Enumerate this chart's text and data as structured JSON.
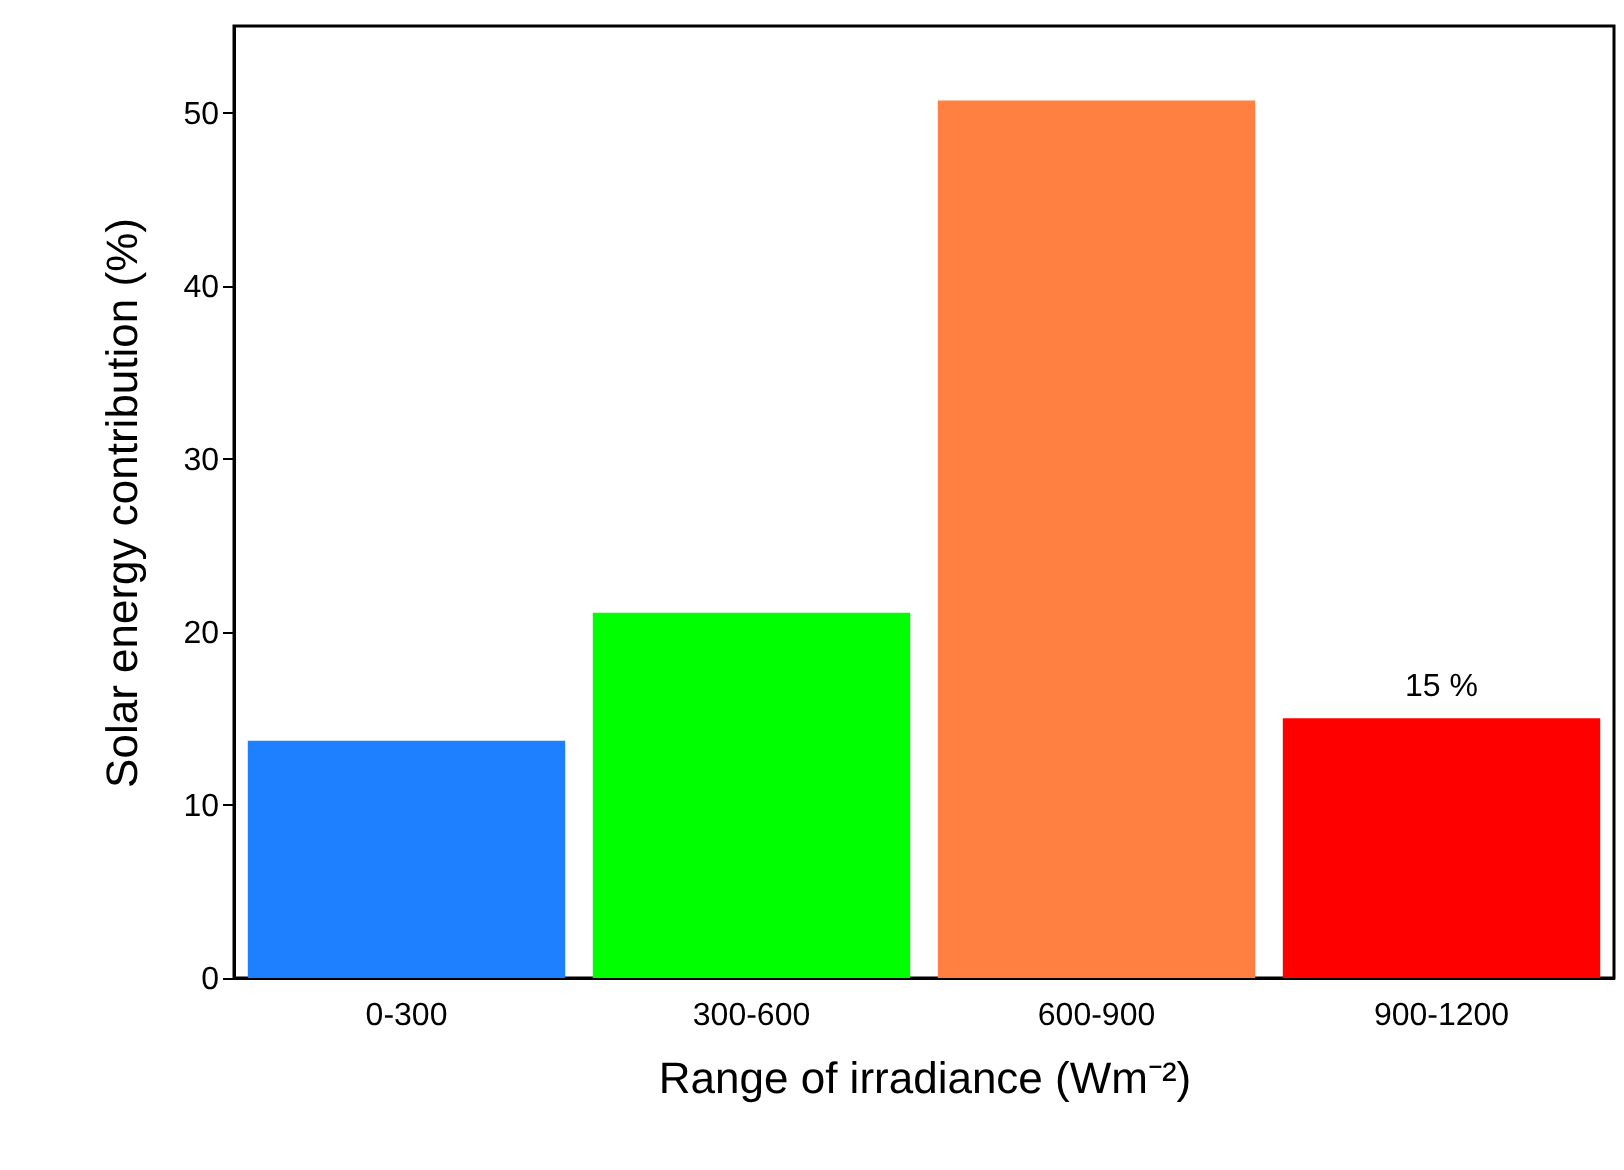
{
  "chart_data": {
    "type": "bar",
    "xlabel": "Range of irradiance (Wm⁻²)",
    "ylabel": "Solar energy contribution (%)",
    "categories": [
      "0-300",
      "300-600",
      "600-900",
      "900-1200"
    ],
    "values": [
      13.7,
      21.1,
      50.7,
      15
    ],
    "colors": [
      "#1e80ff",
      "#00ff00",
      "#ff8040",
      "#ff0000"
    ],
    "value_labels": [
      null,
      null,
      null,
      "15 %"
    ],
    "ylim": [
      0,
      55
    ],
    "yticks": [
      0,
      10,
      20,
      30,
      40,
      50
    ],
    "grid": false
  }
}
